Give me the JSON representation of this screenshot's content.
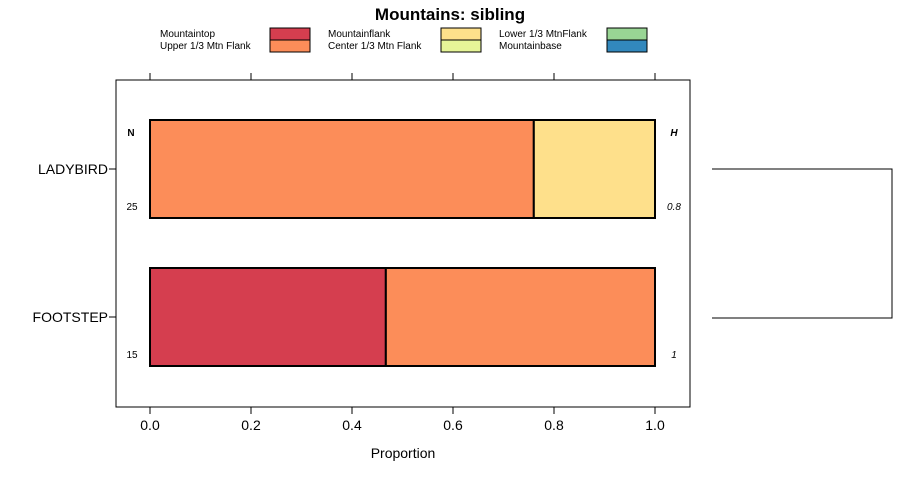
{
  "chart_data": {
    "type": "bar",
    "orientation": "horizontal",
    "stacked": true,
    "title": "Mountains: sibling",
    "xlabel": "Proportion",
    "ylabel": "",
    "xlim": [
      -0.07,
      1.07
    ],
    "xticks": [
      0.0,
      0.2,
      0.4,
      0.6,
      0.8,
      1.0
    ],
    "xtick_labels": [
      "0.0",
      "0.2",
      "0.4",
      "0.6",
      "0.8",
      "1.0"
    ],
    "n_header": "N",
    "h_header": "H",
    "legend_position": "top",
    "legend": [
      {
        "label": "Mountaintop",
        "color": "#d53e4f"
      },
      {
        "label": "Upper 1/3 Mtn Flank",
        "color": "#fc8d59"
      },
      {
        "label": "Mountainflank",
        "color": "#fee08b"
      },
      {
        "label": "Center 1/3 Mtn Flank",
        "color": "#e6f598"
      },
      {
        "label": "Lower 1/3 MtnFlank",
        "color": "#99d594"
      },
      {
        "label": "Mountainbase",
        "color": "#3288bd"
      }
    ],
    "categories": [
      "LADYBIRD",
      "FOOTSTEP"
    ],
    "rows": [
      {
        "name": "LADYBIRD",
        "n": "25",
        "h": "0.8",
        "segments": [
          {
            "label": "Upper 1/3 Mtn Flank",
            "value": 0.76,
            "color": "#fc8d59"
          },
          {
            "label": "Mountainflank",
            "value": 0.24,
            "color": "#fee08b"
          }
        ]
      },
      {
        "name": "FOOTSTEP",
        "n": "15",
        "h": "1",
        "segments": [
          {
            "label": "Mountaintop",
            "value": 0.467,
            "color": "#d53e4f"
          },
          {
            "label": "Upper 1/3 Mtn Flank",
            "value": 0.533,
            "color": "#fc8d59"
          }
        ]
      }
    ]
  }
}
